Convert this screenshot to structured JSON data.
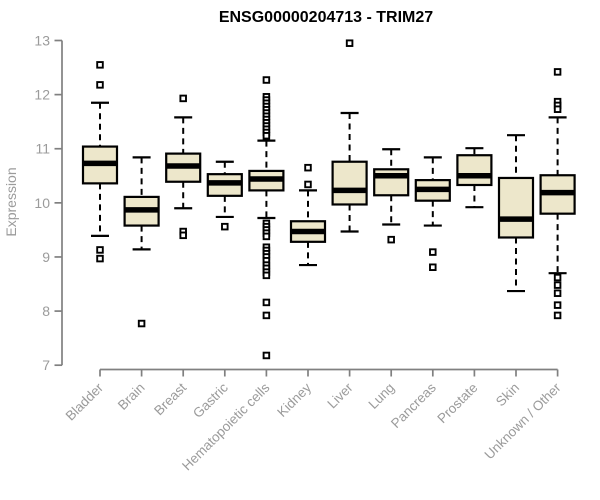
{
  "chart_data": {
    "type": "boxplot",
    "title": "ENSG00000204713 - TRIM27",
    "ylabel": "Expression",
    "xlabel": "",
    "ylim": [
      7,
      13
    ],
    "yticks": [
      7,
      8,
      9,
      10,
      11,
      12,
      13
    ],
    "grid": false,
    "legend": "none",
    "categories": [
      "Bladder",
      "Brain",
      "Breast",
      "Gastric",
      "Hematopoietic cells",
      "Kidney",
      "Liver",
      "Lung",
      "Pancreas",
      "Prostate",
      "Skin",
      "Unknown / Other"
    ],
    "boxes": [
      {
        "category": "Bladder",
        "whisker_low": 9.39,
        "q1": 10.36,
        "median": 10.73,
        "q3": 11.04,
        "whisker_high": 11.85,
        "outliers": [
          12.55,
          12.18,
          9.13,
          8.97
        ]
      },
      {
        "category": "Brain",
        "whisker_low": 9.14,
        "q1": 9.58,
        "median": 9.87,
        "q3": 10.11,
        "whisker_high": 10.84,
        "outliers": [
          7.77
        ]
      },
      {
        "category": "Breast",
        "whisker_low": 9.9,
        "q1": 10.39,
        "median": 10.68,
        "q3": 10.91,
        "whisker_high": 11.58,
        "outliers": [
          11.93,
          9.47,
          9.4
        ]
      },
      {
        "category": "Gastric",
        "whisker_low": 9.74,
        "q1": 10.13,
        "median": 10.37,
        "q3": 10.53,
        "whisker_high": 10.76,
        "outliers": [
          9.56
        ]
      },
      {
        "category": "Hematopoietic cells",
        "whisker_low": 9.72,
        "q1": 10.23,
        "median": 10.44,
        "q3": 10.59,
        "whisker_high": 11.15,
        "outliers": [
          12.27,
          11.96,
          11.9,
          11.84,
          11.78,
          11.72,
          11.66,
          11.6,
          11.54,
          11.48,
          11.42,
          11.36,
          11.3,
          11.24,
          9.62,
          9.56,
          9.5,
          9.44,
          9.38,
          9.18,
          9.12,
          9.06,
          9.0,
          8.93,
          8.85,
          8.79,
          8.72,
          8.66,
          8.16,
          7.92,
          7.18
        ]
      },
      {
        "category": "Kidney",
        "whisker_low": 8.85,
        "q1": 9.28,
        "median": 9.47,
        "q3": 9.66,
        "whisker_high": 10.23,
        "outliers": [
          10.65,
          10.34
        ]
      },
      {
        "category": "Liver",
        "whisker_low": 9.47,
        "q1": 9.97,
        "median": 10.23,
        "q3": 10.76,
        "whisker_high": 11.66,
        "outliers": [
          12.95
        ]
      },
      {
        "category": "Lung",
        "whisker_low": 9.6,
        "q1": 10.14,
        "median": 10.5,
        "q3": 10.62,
        "whisker_high": 10.99,
        "outliers": [
          9.32
        ]
      },
      {
        "category": "Pancreas",
        "whisker_low": 9.58,
        "q1": 10.04,
        "median": 10.25,
        "q3": 10.42,
        "whisker_high": 10.84,
        "outliers": [
          9.09,
          8.81
        ]
      },
      {
        "category": "Prostate",
        "whisker_low": 9.92,
        "q1": 10.33,
        "median": 10.5,
        "q3": 10.88,
        "whisker_high": 11.01,
        "outliers": []
      },
      {
        "category": "Skin",
        "whisker_low": 8.37,
        "q1": 9.36,
        "median": 9.7,
        "q3": 10.46,
        "whisker_high": 11.25,
        "outliers": []
      },
      {
        "category": "Unknown / Other",
        "whisker_low": 8.7,
        "q1": 9.8,
        "median": 10.19,
        "q3": 10.51,
        "whisker_high": 11.58,
        "outliers": [
          12.42,
          11.87,
          11.8,
          11.73,
          8.62,
          8.48,
          8.33,
          8.11,
          7.92
        ]
      }
    ]
  },
  "colors": {
    "box_fill": "#ede7cb",
    "box_stroke": "#000000",
    "median": "#000000",
    "whisker": "#000000",
    "outlier_stroke": "#000000",
    "outlier_fill": "#ffffff",
    "axis_line": "#808080",
    "axis_text": "#9b9b9b",
    "title_text": "#000000",
    "background": "#ffffff"
  }
}
